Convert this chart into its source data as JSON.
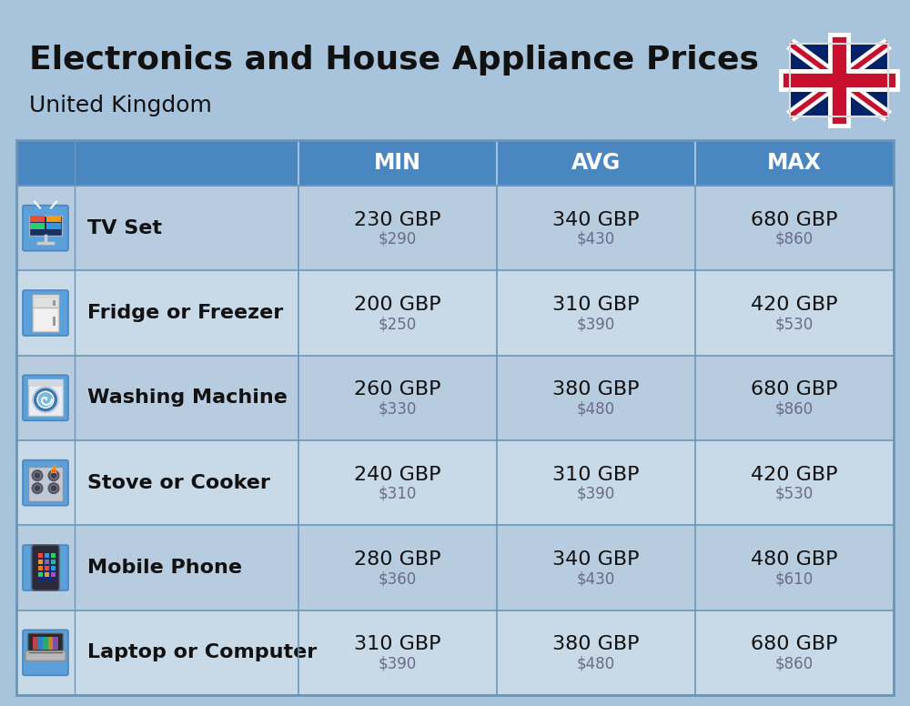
{
  "title": "Electronics and House Appliance Prices",
  "subtitle": "United Kingdom",
  "background_color": "#a8c4dc",
  "header_color": "#4a86c0",
  "header_text_color": "#ffffff",
  "row_bg_color_even": "#b8ccdf",
  "row_bg_color_odd": "#c8d9e8",
  "border_color": "#6a96b8",
  "rows": [
    {
      "icon": "tv",
      "name": "TV Set",
      "min_gbp": "230 GBP",
      "min_usd": "$290",
      "avg_gbp": "340 GBP",
      "avg_usd": "$430",
      "max_gbp": "680 GBP",
      "max_usd": "$860"
    },
    {
      "icon": "fridge",
      "name": "Fridge or Freezer",
      "min_gbp": "200 GBP",
      "min_usd": "$250",
      "avg_gbp": "310 GBP",
      "avg_usd": "$390",
      "max_gbp": "420 GBP",
      "max_usd": "$530"
    },
    {
      "icon": "washing",
      "name": "Washing Machine",
      "min_gbp": "260 GBP",
      "min_usd": "$330",
      "avg_gbp": "380 GBP",
      "avg_usd": "$480",
      "max_gbp": "680 GBP",
      "max_usd": "$860"
    },
    {
      "icon": "stove",
      "name": "Stove or Cooker",
      "min_gbp": "240 GBP",
      "min_usd": "$310",
      "avg_gbp": "310 GBP",
      "avg_usd": "$390",
      "max_gbp": "420 GBP",
      "max_usd": "$530"
    },
    {
      "icon": "phone",
      "name": "Mobile Phone",
      "min_gbp": "280 GBP",
      "min_usd": "$360",
      "avg_gbp": "340 GBP",
      "avg_usd": "$430",
      "max_gbp": "480 GBP",
      "max_usd": "$610"
    },
    {
      "icon": "laptop",
      "name": "Laptop or Computer",
      "min_gbp": "310 GBP",
      "min_usd": "$390",
      "avg_gbp": "380 GBP",
      "avg_usd": "$480",
      "max_gbp": "680 GBP",
      "max_usd": "$860"
    }
  ],
  "title_fontsize": 26,
  "subtitle_fontsize": 18,
  "header_fontsize": 17,
  "cell_gbp_fontsize": 16,
  "cell_usd_fontsize": 12,
  "name_fontsize": 16
}
